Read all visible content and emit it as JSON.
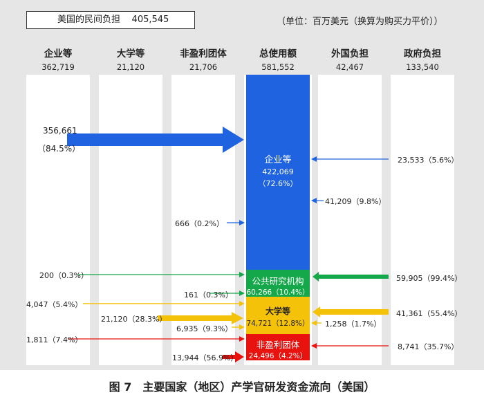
{
  "header": {
    "private_label": "美国的民间负担",
    "private_value": "405,545",
    "unit": "（单位：百万美元（换算为购买力平价））"
  },
  "columns": [
    {
      "title": "企业等",
      "value": "362,719"
    },
    {
      "title": "大学等",
      "value": "21,120"
    },
    {
      "title": "非盈利团体",
      "value": "21,706"
    },
    {
      "title": "总使用额",
      "value": "581,552"
    },
    {
      "title": "外国负担",
      "value": "42,467"
    },
    {
      "title": "政府负担",
      "value": "133,540"
    }
  ],
  "blocks": {
    "enterprise": {
      "title": "企业等",
      "value": "422,069",
      "share": "（72.6%）"
    },
    "public": {
      "title": "公共研究机构",
      "value": "60,266（10.4%）"
    },
    "university": {
      "title": "大学等",
      "value": "74,721（12.8%）"
    },
    "nonprofit": {
      "title": "非盈利团体",
      "value": "24,496（4.2%）"
    }
  },
  "flows": {
    "ent_from_ent": "356,661",
    "ent_from_ent_pct": "（84.5%）",
    "gov_to_ent": "23,533（5.6%）",
    "foreign_to_ent": "41,209（9.8%）",
    "np_to_ent": "666（0.2%）",
    "ent_to_public": "200（0.3%）",
    "gov_to_public": "59,905（99.4%）",
    "np_to_public": "161（0.3%）",
    "ent_to_univ": "4,047（5.4%）",
    "univ_self": "21,120（28.3%）",
    "gov_to_univ": "41,361（55.4%）",
    "np_to_univ": "6,935（9.3%）",
    "foreign_to_univ": "1,258（1.7%）",
    "ent_to_np": "1,811（7.4%）",
    "gov_to_np": "8,741（35.7%）",
    "np_self": "13,944（56.9%）"
  },
  "colors": {
    "background": "#e6e6e6",
    "enterprise": "#1f63e0",
    "public": "#14a84a",
    "university": "#f5c20a",
    "nonprofit": "#e8120f",
    "text_on_dark": "#ffffff"
  },
  "caption": "图 7　主要国家（地区）产学官研发资金流向（美国）"
}
